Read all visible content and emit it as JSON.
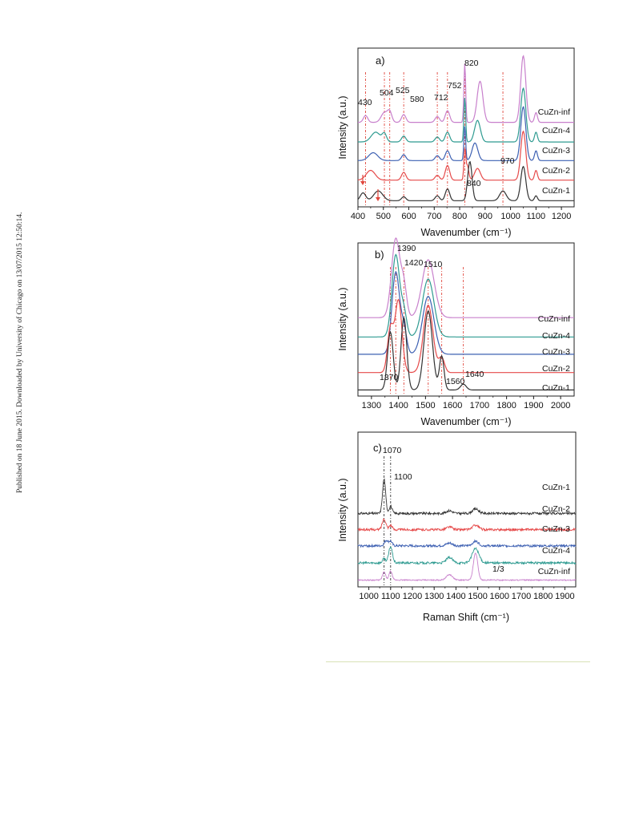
{
  "side_note": "Published on 18 June 2015. Downloaded by University of Chicago on 13/07/2015 12:50:14.",
  "colors": {
    "CuZn-inf": "#c880cc",
    "CuZn-4": "#2f9b91",
    "CuZn-3": "#3d60b2",
    "CuZn-2": "#e64a4a",
    "CuZn-1": "#333333",
    "guide": "#e0463c"
  },
  "chart_data": [
    {
      "type": "line",
      "panel_label": "a)",
      "xlabel": "Wavenumber (cm⁻¹)",
      "ylabel": "Intensity (a.u.)",
      "xlim": [
        400,
        1250
      ],
      "xticks": [
        "400",
        "500",
        "600",
        "700",
        "800",
        "900",
        "1000",
        "1100",
        "1200"
      ],
      "series": [
        {
          "name": "CuZn-inf",
          "baseline": 0.83,
          "peaks": [
            [
              430,
              0.07,
              12
            ],
            [
              504,
              0.1,
              18
            ],
            [
              525,
              0.1,
              12
            ],
            [
              580,
              0.08,
              12
            ],
            [
              712,
              0.06,
              12
            ],
            [
              752,
              0.12,
              12
            ],
            [
              820,
              0.6,
              5
            ],
            [
              880,
              0.42,
              16
            ],
            [
              1050,
              0.68,
              14
            ],
            [
              1100,
              0.1,
              8
            ]
          ]
        },
        {
          "name": "CuZn-4",
          "baseline": 0.63,
          "peaks": [
            [
              470,
              0.1,
              25
            ],
            [
              504,
              0.08,
              12
            ],
            [
              580,
              0.06,
              12
            ],
            [
              712,
              0.05,
              12
            ],
            [
              752,
              0.1,
              12
            ],
            [
              820,
              0.45,
              5
            ],
            [
              870,
              0.22,
              16
            ],
            [
              1050,
              0.55,
              14
            ],
            [
              1100,
              0.1,
              8
            ]
          ]
        },
        {
          "name": "CuZn-3",
          "baseline": 0.44,
          "peaks": [
            [
              460,
              0.08,
              25
            ],
            [
              580,
              0.06,
              12
            ],
            [
              712,
              0.05,
              12
            ],
            [
              752,
              0.1,
              12
            ],
            [
              820,
              0.35,
              5
            ],
            [
              860,
              0.18,
              16
            ],
            [
              1050,
              0.55,
              14
            ],
            [
              1100,
              0.1,
              8
            ]
          ]
        },
        {
          "name": "CuZn-2",
          "baseline": 0.24,
          "peaks": [
            [
              450,
              0.1,
              25
            ],
            [
              580,
              0.08,
              12
            ],
            [
              712,
              0.05,
              12
            ],
            [
              752,
              0.15,
              12
            ],
            [
              820,
              0.3,
              5
            ],
            [
              830,
              0.15,
              8
            ],
            [
              870,
              0.12,
              16
            ],
            [
              1050,
              0.5,
              14
            ],
            [
              1100,
              0.1,
              8
            ]
          ]
        },
        {
          "name": "CuZn-1",
          "baseline": 0.03,
          "peaks": [
            [
              420,
              0.08,
              15
            ],
            [
              480,
              0.1,
              25
            ],
            [
              580,
              0.04,
              12
            ],
            [
              712,
              0.05,
              12
            ],
            [
              752,
              0.12,
              12
            ],
            [
              840,
              0.4,
              12
            ],
            [
              970,
              0.1,
              18
            ],
            [
              1050,
              0.35,
              14
            ],
            [
              1100,
              0.05,
              8
            ]
          ]
        }
      ],
      "peak_labels": [
        "430",
        "504",
        "525",
        "580",
        "712",
        "752",
        "820",
        "840",
        "970"
      ],
      "guide_lines": [
        430,
        504,
        525,
        580,
        712,
        752,
        820,
        970
      ]
    },
    {
      "type": "line",
      "panel_label": "b)",
      "xlabel": "Wavenumber (cm⁻¹)",
      "ylabel": "Intensity (a.u.)",
      "xlim": [
        1250,
        2050
      ],
      "xticks": [
        "1300",
        "1400",
        "1500",
        "1600",
        "1700",
        "1800",
        "1900",
        "2000"
      ],
      "series": [
        {
          "name": "CuZn-inf",
          "baseline": 0.78,
          "peaks": [
            [
              1390,
              0.82,
              22
            ],
            [
              1420,
              0.3,
              15
            ],
            [
              1510,
              0.6,
              32
            ]
          ]
        },
        {
          "name": "CuZn-4",
          "baseline": 0.58,
          "peaks": [
            [
              1390,
              0.85,
              20
            ],
            [
              1420,
              0.25,
              15
            ],
            [
              1510,
              0.6,
              30
            ]
          ]
        },
        {
          "name": "CuZn-3",
          "baseline": 0.4,
          "peaks": [
            [
              1390,
              0.85,
              20
            ],
            [
              1420,
              0.25,
              15
            ],
            [
              1510,
              0.6,
              30
            ]
          ]
        },
        {
          "name": "CuZn-2",
          "baseline": 0.21,
          "peaks": [
            [
              1370,
              0.45,
              15
            ],
            [
              1400,
              0.75,
              18
            ],
            [
              1510,
              0.7,
              25
            ],
            [
              1560,
              0.15,
              15
            ]
          ]
        },
        {
          "name": "CuZn-1",
          "baseline": 0.03,
          "peaks": [
            [
              1370,
              0.6,
              15
            ],
            [
              1420,
              0.75,
              15
            ],
            [
              1510,
              0.82,
              22
            ],
            [
              1560,
              0.35,
              12
            ],
            [
              1640,
              0.06,
              15
            ]
          ]
        }
      ],
      "peak_labels": [
        "1390",
        "1420",
        "1510",
        "1370",
        "1560",
        "1640"
      ],
      "guide_lines": [
        1370,
        1390,
        1420,
        1510,
        1560,
        1640
      ]
    },
    {
      "type": "line",
      "panel_label": "c)",
      "xlabel": "Raman Shift (cm⁻¹)",
      "ylabel": "Intensity (a.u.)",
      "xlim": [
        950,
        1950
      ],
      "xticks": [
        "1000",
        "1100",
        "1200",
        "1300",
        "1400",
        "1500",
        "1600",
        "1700",
        "1800",
        "1900"
      ],
      "series": [
        {
          "name": "CuZn-1",
          "baseline": 0.78,
          "noise": 0.025,
          "peaks": [
            [
              1070,
              0.38,
              10
            ],
            [
              1100,
              0.08,
              10
            ],
            [
              1370,
              0.03,
              20
            ],
            [
              1490,
              0.05,
              20
            ]
          ]
        },
        {
          "name": "CuZn-2",
          "baseline": 0.6,
          "noise": 0.025,
          "peaks": [
            [
              1070,
              0.12,
              12
            ],
            [
              1100,
              0.05,
              10
            ],
            [
              1370,
              0.03,
              20
            ],
            [
              1490,
              0.05,
              20
            ]
          ]
        },
        {
          "name": "CuZn-3",
          "baseline": 0.42,
          "noise": 0.025,
          "peaks": [
            [
              1080,
              0.06,
              12
            ],
            [
              1100,
              0.05,
              10
            ],
            [
              1370,
              0.03,
              20
            ],
            [
              1490,
              0.05,
              20
            ]
          ]
        },
        {
          "name": "CuZn-4",
          "baseline": 0.23,
          "noise": 0.025,
          "peaks": [
            [
              1070,
              0.05,
              10
            ],
            [
              1100,
              0.18,
              12
            ],
            [
              1370,
              0.06,
              20
            ],
            [
              1490,
              0.16,
              22
            ]
          ]
        },
        {
          "name": "CuZn-inf",
          "baseline": 0.04,
          "noise": 0.012,
          "peaks": [
            [
              1070,
              0.09,
              10
            ],
            [
              1100,
              0.1,
              10
            ],
            [
              1370,
              0.06,
              20
            ],
            [
              1490,
              0.3,
              14
            ]
          ]
        }
      ],
      "peak_labels": [
        "1070",
        "1100",
        "1/3"
      ],
      "guide_lines": [
        1070,
        1100
      ]
    }
  ]
}
